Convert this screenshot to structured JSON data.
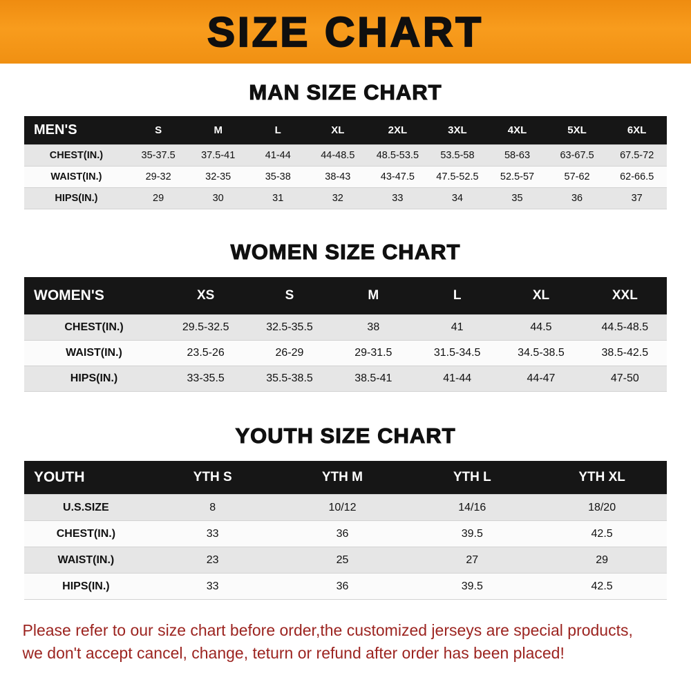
{
  "banner": {
    "title": "SIZE CHART"
  },
  "colors": {
    "banner_orange": "#f7941d",
    "table_header_black": "#161616",
    "row_gray": "#e6e6e6",
    "disclaimer_red": "#9c2420"
  },
  "chart_data": [
    {
      "type": "table",
      "title": "MAN SIZE CHART",
      "header": [
        "MEN'S",
        "S",
        "M",
        "L",
        "XL",
        "2XL",
        "3XL",
        "4XL",
        "5XL",
        "6XL"
      ],
      "rows": [
        [
          "CHEST(IN.)",
          "35-37.5",
          "37.5-41",
          "41-44",
          "44-48.5",
          "48.5-53.5",
          "53.5-58",
          "58-63",
          "63-67.5",
          "67.5-72"
        ],
        [
          "WAIST(IN.)",
          "29-32",
          "32-35",
          "35-38",
          "38-43",
          "43-47.5",
          "47.5-52.5",
          "52.5-57",
          "57-62",
          "62-66.5"
        ],
        [
          "HIPS(IN.)",
          "29",
          "30",
          "31",
          "32",
          "33",
          "34",
          "35",
          "36",
          "37"
        ]
      ]
    },
    {
      "type": "table",
      "title": "WOMEN SIZE CHART",
      "header": [
        "WOMEN'S",
        "XS",
        "S",
        "M",
        "L",
        "XL",
        "XXL"
      ],
      "rows": [
        [
          "CHEST(IN.)",
          "29.5-32.5",
          "32.5-35.5",
          "38",
          "41",
          "44.5",
          "44.5-48.5"
        ],
        [
          "WAIST(IN.)",
          "23.5-26",
          "26-29",
          "29-31.5",
          "31.5-34.5",
          "34.5-38.5",
          "38.5-42.5"
        ],
        [
          "HIPS(IN.)",
          "33-35.5",
          "35.5-38.5",
          "38.5-41",
          "41-44",
          "44-47",
          "47-50"
        ]
      ]
    },
    {
      "type": "table",
      "title": "YOUTH SIZE CHART",
      "header": [
        "YOUTH",
        "YTH S",
        "YTH M",
        "YTH L",
        "YTH XL"
      ],
      "rows": [
        [
          "U.S.SIZE",
          "8",
          "10/12",
          "14/16",
          "18/20"
        ],
        [
          "CHEST(IN.)",
          "33",
          "36",
          "39.5",
          "42.5"
        ],
        [
          "WAIST(IN.)",
          "23",
          "25",
          "27",
          "29"
        ],
        [
          "HIPS(IN.)",
          "33",
          "36",
          "39.5",
          "42.5"
        ]
      ]
    }
  ],
  "disclaimer": {
    "lines": [
      "Please refer to our size chart before order,the customized jerseys are special products,",
      "we don't accept cancel, change, teturn or refund after order has been placed!"
    ]
  }
}
